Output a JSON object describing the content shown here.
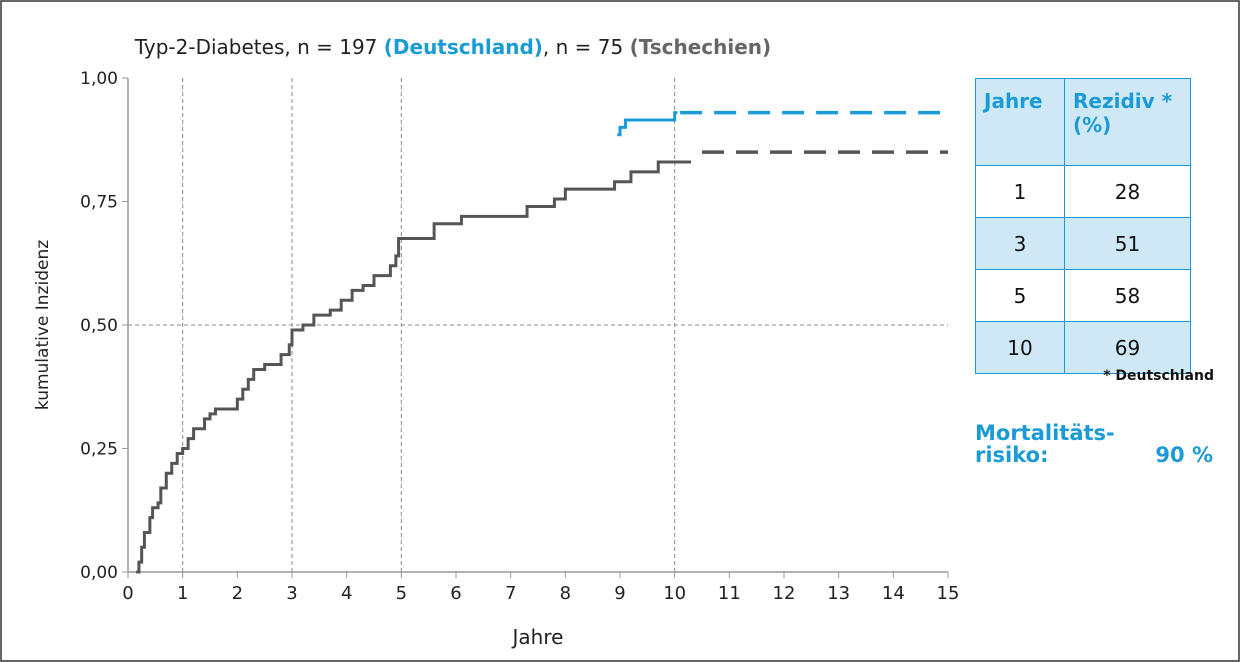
{
  "chart_data": {
    "type": "step",
    "title_parts": [
      {
        "text": "Typ-2-Diabetes, n = 197 ",
        "color": "#222222",
        "bold": false
      },
      {
        "text": "(Deutschland)",
        "color": "#1a9ad6",
        "bold": true
      },
      {
        "text": ", n = 75 ",
        "color": "#222222",
        "bold": false
      },
      {
        "text": "(Tschechien)",
        "color": "#666666",
        "bold": true
      }
    ],
    "xlabel": "Jahre",
    "ylabel": "kumulative Inzidenz",
    "xlim": [
      0,
      15
    ],
    "ylim": [
      0,
      1
    ],
    "xticks": [
      0,
      1,
      2,
      3,
      4,
      5,
      6,
      7,
      8,
      9,
      10,
      11,
      12,
      13,
      14,
      15
    ],
    "yticks": [
      {
        "value": 0,
        "label": "0,00"
      },
      {
        "value": 0.25,
        "label": "0,25"
      },
      {
        "value": 0.5,
        "label": "0,50"
      },
      {
        "value": 0.75,
        "label": "0,75"
      },
      {
        "value": 1,
        "label": "1,00"
      }
    ],
    "grid_x": [
      1,
      3,
      5,
      10
    ],
    "grid_y": [
      0.5
    ],
    "series": [
      {
        "color": "#555555",
        "x": [
          0.15,
          0.2,
          0.25,
          0.3,
          0.4,
          0.45,
          0.55,
          0.6,
          0.7,
          0.8,
          0.9,
          1.0,
          1.1,
          1.2,
          1.4,
          1.5,
          1.6,
          2.0,
          2.1,
          2.2,
          2.3,
          2.5,
          2.8,
          2.95,
          3.0,
          3.2,
          3.4,
          3.7,
          3.9,
          4.1,
          4.3,
          4.5,
          4.8,
          4.9,
          4.95,
          5.6,
          6.1,
          7.3,
          7.8,
          8.0,
          8.9,
          9.2,
          9.7,
          10.3
        ],
        "values": [
          0.0,
          0.02,
          0.05,
          0.08,
          0.11,
          0.13,
          0.14,
          0.17,
          0.2,
          0.22,
          0.24,
          0.25,
          0.27,
          0.29,
          0.31,
          0.32,
          0.33,
          0.35,
          0.37,
          0.39,
          0.41,
          0.42,
          0.44,
          0.46,
          0.49,
          0.5,
          0.52,
          0.53,
          0.55,
          0.57,
          0.58,
          0.6,
          0.62,
          0.64,
          0.675,
          0.705,
          0.72,
          0.74,
          0.755,
          0.775,
          0.79,
          0.81,
          0.83,
          0.83
        ],
        "dashed_x": [
          10.5,
          15
        ],
        "dashed_values": [
          0.85,
          0.85
        ]
      },
      {
        "color": "#1a9ad6",
        "x": [
          8.95,
          9.0,
          9.1,
          10.0,
          10.05
        ],
        "values": [
          0.885,
          0.9,
          0.915,
          0.93,
          0.93
        ],
        "dashed_x": [
          10.1,
          15
        ],
        "dashed_values": [
          0.93,
          0.93
        ]
      }
    ]
  },
  "table": {
    "header": [
      "Jahre",
      "Rezidiv * (%)"
    ],
    "rows": [
      [
        "1",
        "28"
      ],
      [
        "3",
        "51"
      ],
      [
        "5",
        "58"
      ],
      [
        "10",
        "69"
      ]
    ],
    "footnote": "* Deutschland"
  },
  "mortality": {
    "label_lines": [
      "Mortalitäts-",
      "risiko:"
    ],
    "value": "90 %"
  }
}
